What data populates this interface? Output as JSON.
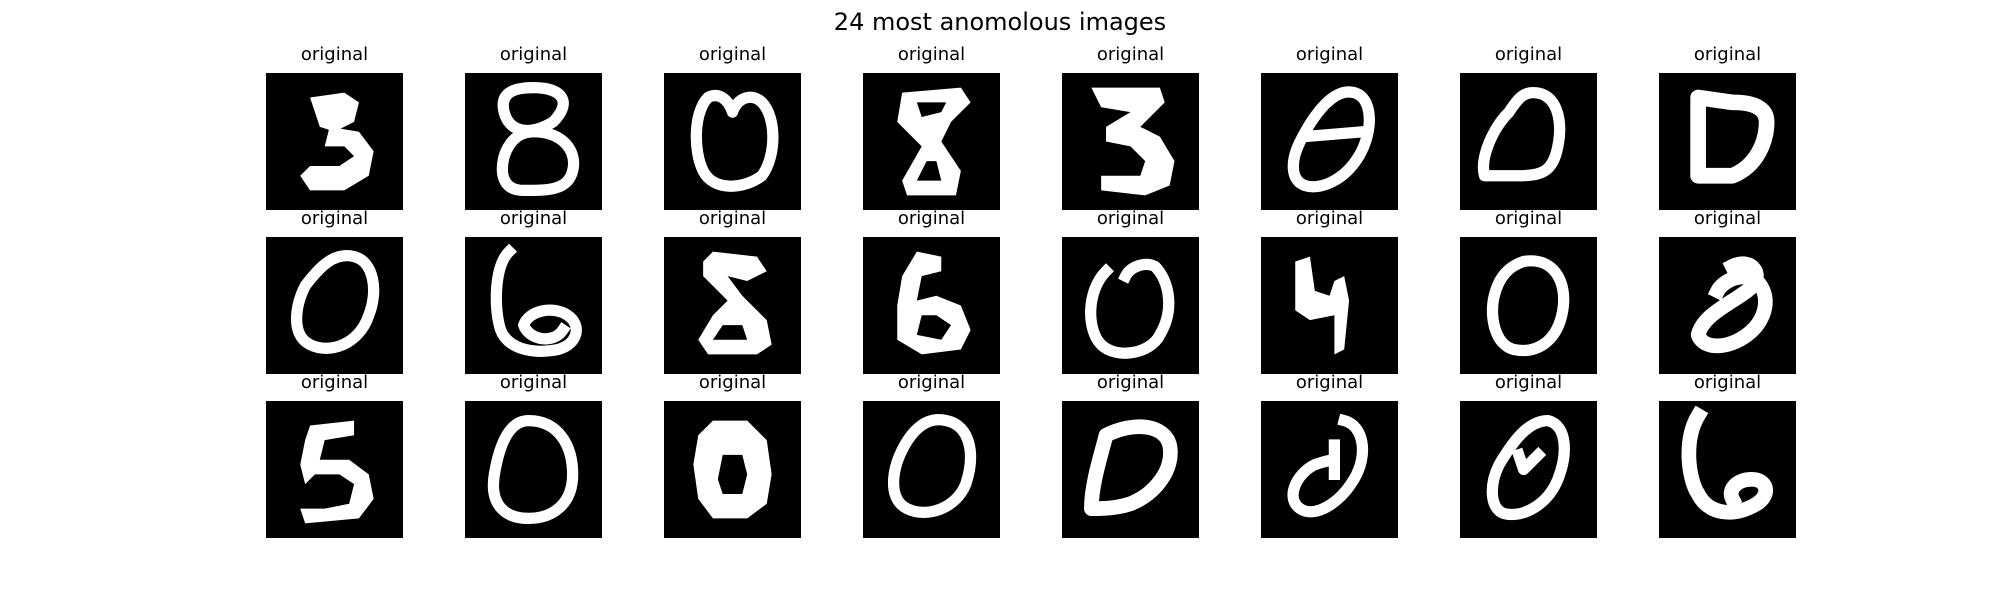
{
  "figure": {
    "title": "24 most anomolous images"
  },
  "grid": {
    "rows": 3,
    "cols": 8
  },
  "cells": [
    {
      "label": "original",
      "digit": "3"
    },
    {
      "label": "original",
      "digit": "8"
    },
    {
      "label": "original",
      "digit": "0"
    },
    {
      "label": "original",
      "digit": "8"
    },
    {
      "label": "original",
      "digit": "3"
    },
    {
      "label": "original",
      "digit": "0"
    },
    {
      "label": "original",
      "digit": "0"
    },
    {
      "label": "original",
      "digit": "0"
    },
    {
      "label": "original",
      "digit": "0"
    },
    {
      "label": "original",
      "digit": "6"
    },
    {
      "label": "original",
      "digit": "8"
    },
    {
      "label": "original",
      "digit": "6"
    },
    {
      "label": "original",
      "digit": "0"
    },
    {
      "label": "original",
      "digit": "4"
    },
    {
      "label": "original",
      "digit": "0"
    },
    {
      "label": "original",
      "digit": "0"
    },
    {
      "label": "original",
      "digit": "5"
    },
    {
      "label": "original",
      "digit": "0"
    },
    {
      "label": "original",
      "digit": "0"
    },
    {
      "label": "original",
      "digit": "0"
    },
    {
      "label": "original",
      "digit": "0"
    },
    {
      "label": "original",
      "digit": "0"
    },
    {
      "label": "original",
      "digit": "0"
    },
    {
      "label": "original",
      "digit": "6"
    }
  ],
  "colors": {
    "image_background": "#000000",
    "digit_stroke": "#ffffff",
    "text": "#000000"
  }
}
